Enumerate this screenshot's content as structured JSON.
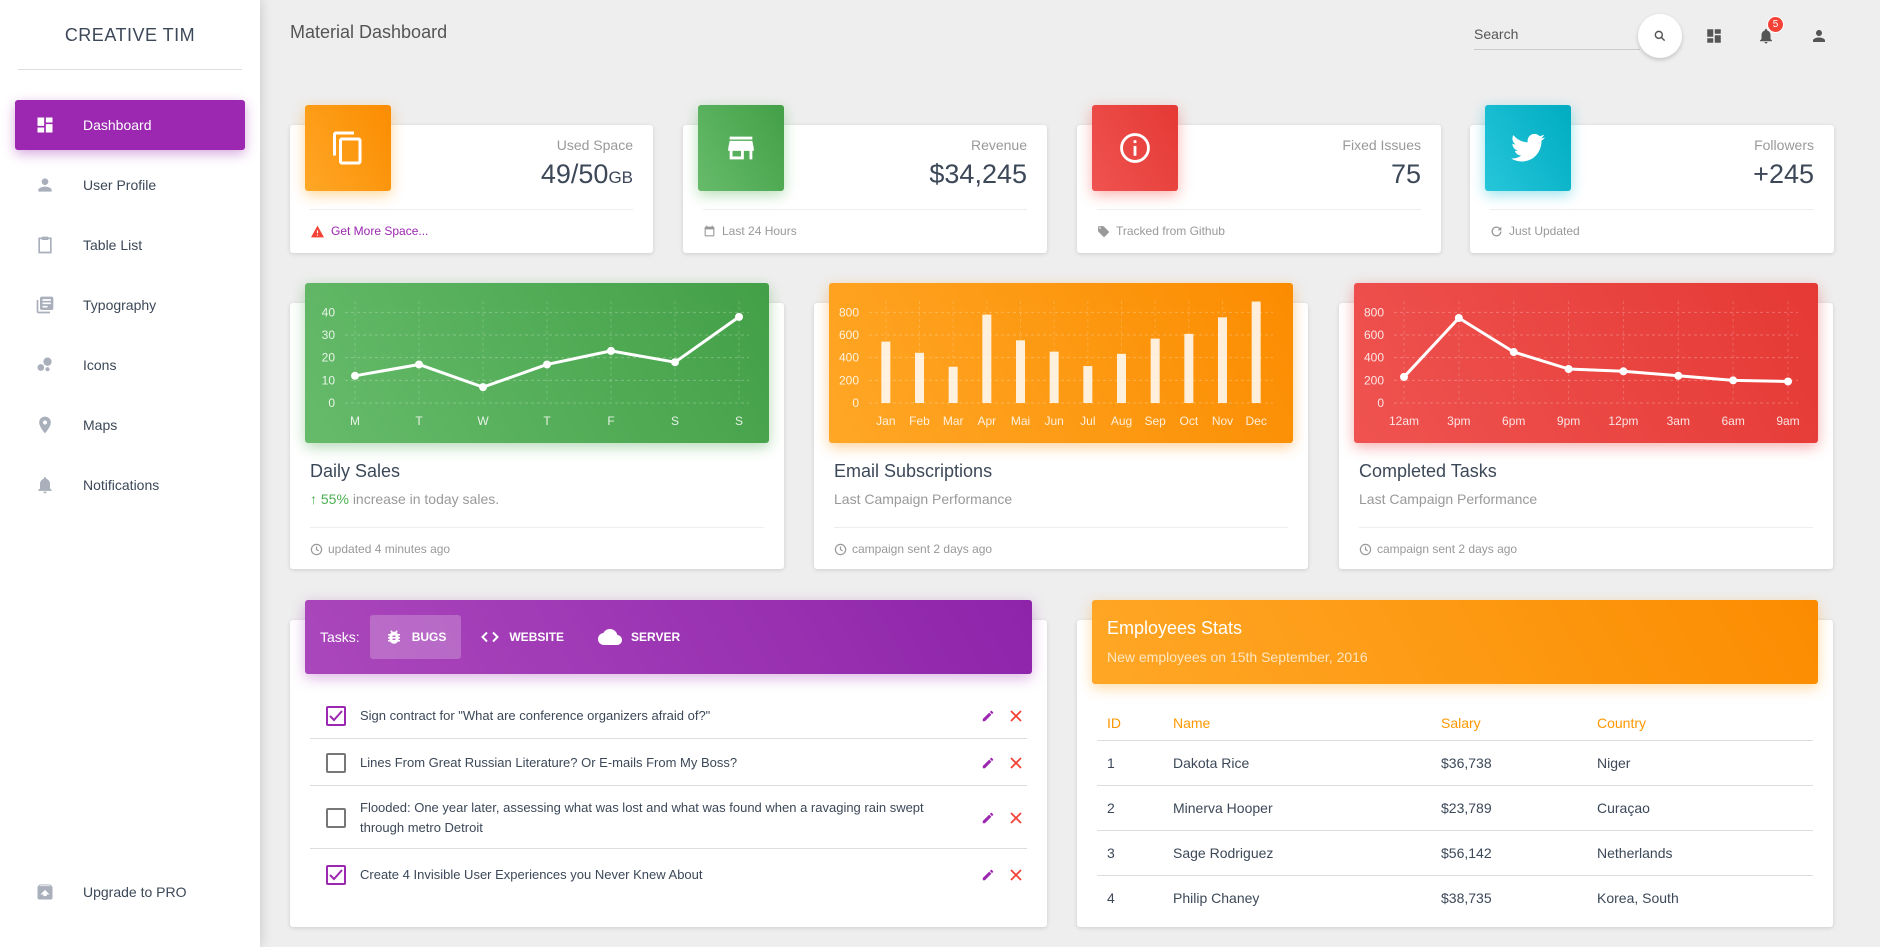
{
  "sidebar": {
    "logo": "CREATIVE TIM",
    "items": [
      {
        "label": "Dashboard"
      },
      {
        "label": "User Profile"
      },
      {
        "label": "Table List"
      },
      {
        "label": "Typography"
      },
      {
        "label": "Icons"
      },
      {
        "label": "Maps"
      },
      {
        "label": "Notifications"
      }
    ],
    "upgrade": "Upgrade to PRO"
  },
  "topbar": {
    "title": "Material Dashboard",
    "search_placeholder": "Search",
    "notification_count": "5"
  },
  "stats": [
    {
      "category": "Used Space",
      "value": "49/50",
      "unit": "GB",
      "footer": "Get More Space...",
      "color": "#ff9800"
    },
    {
      "category": "Revenue",
      "value": "$34,245",
      "footer": "Last 24 Hours",
      "color": "#4caf50"
    },
    {
      "category": "Fixed Issues",
      "value": "75",
      "footer": "Tracked from Github",
      "color": "#e53935"
    },
    {
      "category": "Followers",
      "value": "+245",
      "footer": "Just Updated",
      "color": "#00bcd4"
    }
  ],
  "charts": [
    {
      "type": "line",
      "title": "Daily Sales",
      "sub_percent": "55%",
      "sub_text": "increase in today sales.",
      "footer": "updated 4 minutes ago",
      "color_from": "#66bb6a",
      "color_to": "#43a047",
      "categories": [
        "M",
        "T",
        "W",
        "T",
        "F",
        "S",
        "S"
      ],
      "values": [
        12,
        17,
        7,
        17,
        23,
        18,
        38
      ],
      "yticks": [
        0,
        10,
        20,
        30,
        40
      ],
      "ylim": [
        0,
        45
      ]
    },
    {
      "type": "bar",
      "title": "Email Subscriptions",
      "sub_text": "Last Campaign Performance",
      "footer": "campaign sent 2 days ago",
      "color_from": "#ffa726",
      "color_to": "#fb8c00",
      "categories": [
        "Jan",
        "Feb",
        "Mar",
        "Apr",
        "Mai",
        "Jun",
        "Jul",
        "Aug",
        "Sep",
        "Oct",
        "Nov",
        "Dec"
      ],
      "values": [
        542,
        443,
        320,
        780,
        553,
        453,
        326,
        434,
        568,
        610,
        756,
        895
      ],
      "yticks": [
        0,
        200,
        400,
        600,
        800
      ],
      "ylim": [
        0,
        900
      ]
    },
    {
      "type": "line",
      "title": "Completed Tasks",
      "sub_text": "Last Campaign Performance",
      "footer": "campaign sent 2 days ago",
      "color_from": "#ef5350",
      "color_to": "#e53935",
      "categories": [
        "12am",
        "3pm",
        "6pm",
        "9pm",
        "12pm",
        "3am",
        "6am",
        "9am"
      ],
      "values": [
        230,
        750,
        450,
        300,
        280,
        240,
        200,
        190
      ],
      "yticks": [
        0,
        200,
        400,
        600,
        800
      ],
      "ylim": [
        0,
        900
      ]
    }
  ],
  "tasks": {
    "label": "Tasks:",
    "tabs": [
      {
        "label": "BUGS"
      },
      {
        "label": "WEBSITE"
      },
      {
        "label": "SERVER"
      }
    ],
    "items": [
      {
        "text": "Sign contract for \"What are conference organizers afraid of?\"",
        "checked": true
      },
      {
        "text": "Lines From Great Russian Literature? Or E-mails From My Boss?",
        "checked": false
      },
      {
        "text": "Flooded: One year later, assessing what was lost and what was found when a ravaging rain swept through metro Detroit",
        "checked": false
      },
      {
        "text": "Create 4 Invisible User Experiences you Never Knew About",
        "checked": true
      }
    ]
  },
  "employees": {
    "title": "Employees Stats",
    "subtitle": "New employees on 15th September, 2016",
    "columns": [
      "ID",
      "Name",
      "Salary",
      "Country"
    ],
    "rows": [
      [
        "1",
        "Dakota Rice",
        "$36,738",
        "Niger"
      ],
      [
        "2",
        "Minerva Hooper",
        "$23,789",
        "Curaçao"
      ],
      [
        "3",
        "Sage Rodriguez",
        "$56,142",
        "Netherlands"
      ],
      [
        "4",
        "Philip Chaney",
        "$38,735",
        "Korea, South"
      ]
    ]
  }
}
